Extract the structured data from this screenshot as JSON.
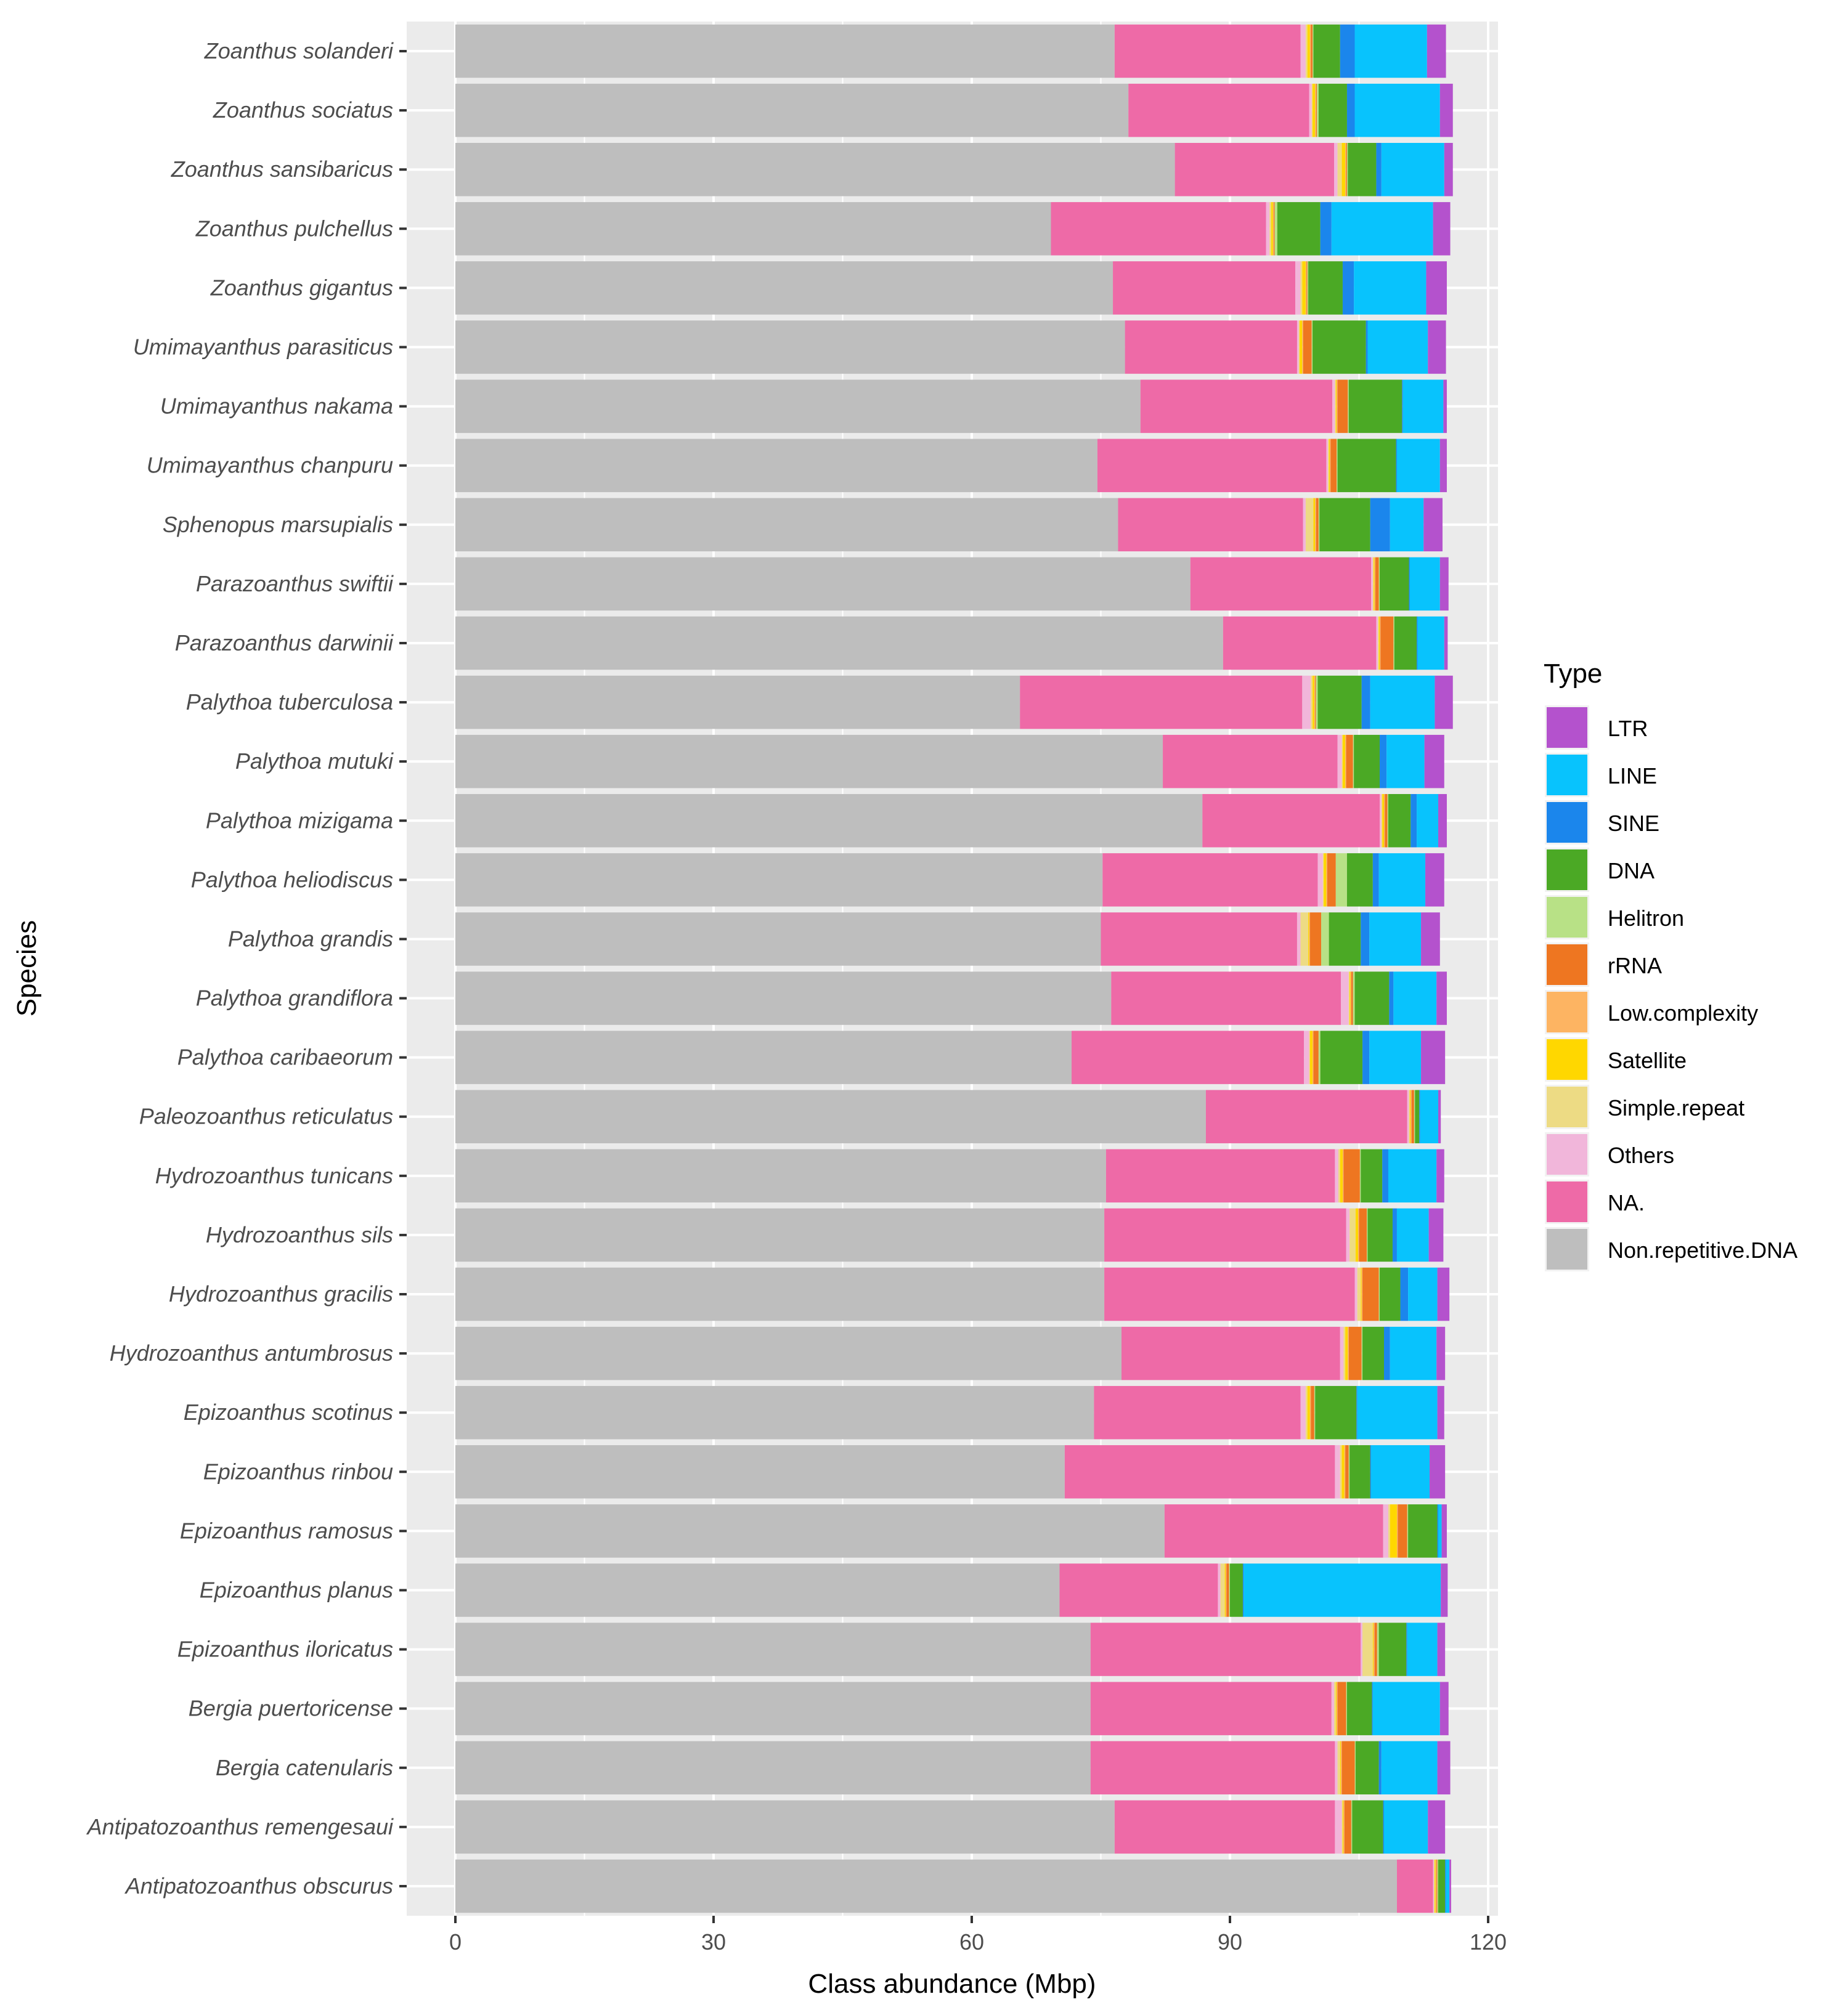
{
  "chart_data": {
    "type": "bar",
    "orientation": "horizontal",
    "stacked": true,
    "title": "",
    "xlabel": "Class abundance (Mbp)",
    "ylabel": "Species",
    "xlim": [
      0,
      120
    ],
    "xticks": [
      0,
      30,
      60,
      90,
      120
    ],
    "xtick_labels": [
      "0",
      "30",
      "60",
      "90",
      "120"
    ],
    "grid": true,
    "legend": {
      "title": "Type",
      "position": "right",
      "entries": [
        "LTR",
        "LINE",
        "SINE",
        "DNA",
        "Helitron",
        "rRNA",
        "Low.complexity",
        "Satellite",
        "Simple.repeat",
        "Others",
        "NA.",
        "Non.repetitive.DNA"
      ]
    },
    "colors": {
      "LTR": "#B452CD",
      "LINE": "#08C3FD",
      "SINE": "#1B86EC",
      "DNA": "#4BA925",
      "Helitron": "#B8E186",
      "rRNA": "#EE7621",
      "Low.complexity": "#FDB462",
      "Satellite": "#FFD700",
      "Simple.repeat": "#EDDB84",
      "Others": "#F1B6DA",
      "NA.": "#EE6AA7",
      "Non.repetitive.DNA": "#BEBEBE"
    },
    "stack_order_left_to_right": [
      "Non.repetitive.DNA",
      "NA.",
      "Others",
      "Simple.repeat",
      "Satellite",
      "Low.complexity",
      "rRNA",
      "Helitron",
      "DNA",
      "SINE",
      "LINE",
      "LTR"
    ],
    "categories": [
      "Zoanthus solanderi",
      "Zoanthus sociatus",
      "Zoanthus sansibaricus",
      "Zoanthus pulchellus",
      "Zoanthus gigantus",
      "Umimayanthus parasiticus",
      "Umimayanthus nakama",
      "Umimayanthus chanpuru",
      "Sphenopus marsupialis",
      "Parazoanthus swiftii",
      "Parazoanthus darwinii",
      "Palythoa tuberculosa",
      "Palythoa mutuki",
      "Palythoa mizigama",
      "Palythoa heliodiscus",
      "Palythoa grandis",
      "Palythoa grandiflora",
      "Palythoa caribaeorum",
      "Paleozoanthus reticulatus",
      "Hydrozoanthus tunicans",
      "Hydrozoanthus sils",
      "Hydrozoanthus gracilis",
      "Hydrozoanthus antumbrosus",
      "Epizoanthus scotinus",
      "Epizoanthus rinbou",
      "Epizoanthus ramosus",
      "Epizoanthus planus",
      "Epizoanthus iloricatus",
      "Bergia puertoricense",
      "Bergia catenularis",
      "Antipatozoanthus remengesaui",
      "Antipatozoanthus obscurus"
    ],
    "series": [
      {
        "name": "Non.repetitive.DNA",
        "values": [
          76.6,
          78.2,
          83.6,
          69.2,
          76.4,
          77.8,
          79.6,
          74.6,
          77.0,
          85.4,
          89.2,
          65.6,
          82.2,
          86.8,
          75.2,
          75.0,
          76.2,
          71.6,
          87.2,
          75.6,
          75.4,
          75.4,
          77.4,
          74.2,
          70.8,
          82.4,
          70.2,
          73.8,
          73.8,
          73.8,
          76.6,
          109.4
        ]
      },
      {
        "name": "NA.",
        "values": [
          21.6,
          21.0,
          18.5,
          25.0,
          21.2,
          20.0,
          22.3,
          26.6,
          21.5,
          21.0,
          17.8,
          32.8,
          20.3,
          20.6,
          25.0,
          22.8,
          26.7,
          27.0,
          23.4,
          26.6,
          28.1,
          29.1,
          25.4,
          24.0,
          31.4,
          25.4,
          18.4,
          31.4,
          28.0,
          28.4,
          25.6,
          4.2
        ]
      },
      {
        "name": "Others",
        "values": [
          0.6,
          0.3,
          0.4,
          0.4,
          0.6,
          0.2,
          0.3,
          0.2,
          0.3,
          0.2,
          0.2,
          1.0,
          0.5,
          0.2,
          0.6,
          0.4,
          0.9,
          0.6,
          0.2,
          0.4,
          0.4,
          0.3,
          0.4,
          0.6,
          0.6,
          0.6,
          0.3,
          0.2,
          0.3,
          0.3,
          0.8,
          0.1
        ]
      },
      {
        "name": "Simple.repeat",
        "values": [
          0.2,
          0.1,
          0.5,
          0.2,
          0.2,
          0.1,
          0.1,
          0.1,
          0.9,
          0.1,
          0.1,
          0.2,
          0.1,
          0.1,
          0.1,
          0.9,
          0.1,
          0.1,
          0.1,
          0.2,
          0.7,
          0.4,
          0.2,
          0.2,
          0.2,
          0.2,
          0.5,
          1.2,
          0.2,
          0.3,
          0.1,
          0.1
        ]
      },
      {
        "name": "Satellite",
        "values": [
          0.3,
          0.3,
          0.4,
          0.2,
          0.4,
          0.3,
          0.1,
          0.1,
          0.2,
          0.1,
          0.1,
          0.2,
          0.3,
          0.2,
          0.3,
          0.1,
          0.1,
          0.3,
          0.1,
          0.3,
          0.3,
          0.1,
          0.3,
          0.3,
          0.3,
          0.8,
          0.1,
          0.1,
          0.1,
          0.1,
          0.1,
          0.1
        ]
      },
      {
        "name": "Low.complexity",
        "values": [
          0.1,
          0.1,
          0.1,
          0.1,
          0.1,
          0.1,
          0.1,
          0.1,
          0.1,
          0.1,
          0.1,
          0.1,
          0.1,
          0.1,
          0.1,
          0.1,
          0.1,
          0.1,
          0.1,
          0.1,
          0.1,
          0.1,
          0.1,
          0.1,
          0.1,
          0.1,
          0.1,
          0.1,
          0.1,
          0.1,
          0.1,
          0.1
        ]
      },
      {
        "name": "rRNA",
        "values": [
          0.2,
          0.1,
          0.1,
          0.1,
          0.1,
          1.0,
          1.2,
          0.7,
          0.3,
          0.4,
          1.5,
          0.1,
          0.8,
          0.3,
          1.0,
          1.3,
          0.2,
          0.6,
          0.3,
          1.9,
          0.9,
          1.9,
          1.5,
          0.4,
          0.4,
          1.1,
          0.3,
          0.3,
          1.0,
          1.5,
          0.8,
          0.1
        ]
      },
      {
        "name": "Helitron",
        "values": [
          0.1,
          0.2,
          0.1,
          0.3,
          0.1,
          0.1,
          0.1,
          0.1,
          0.1,
          0.1,
          0.1,
          0.2,
          0.1,
          0.1,
          1.3,
          0.9,
          0.2,
          0.2,
          0.1,
          0.1,
          0.1,
          0.1,
          0.1,
          0.1,
          0.1,
          0.1,
          0.1,
          0.2,
          0.1,
          0.1,
          0.1,
          0.1
        ]
      },
      {
        "name": "DNA",
        "values": [
          3.1,
          3.3,
          3.3,
          5.0,
          4.0,
          6.2,
          6.2,
          6.8,
          5.9,
          3.4,
          2.6,
          5.1,
          3.0,
          2.6,
          3.0,
          3.7,
          4.0,
          4.9,
          0.5,
          2.5,
          2.9,
          2.4,
          2.5,
          4.8,
          2.4,
          3.4,
          1.5,
          3.2,
          2.9,
          2.7,
          3.6,
          0.8
        ]
      },
      {
        "name": "SINE",
        "values": [
          1.7,
          0.9,
          0.6,
          1.3,
          1.3,
          0.2,
          0.1,
          0.1,
          2.3,
          0.1,
          0.1,
          1.0,
          0.8,
          0.7,
          0.7,
          1.0,
          0.5,
          0.8,
          0.1,
          0.7,
          0.5,
          0.9,
          0.7,
          0.1,
          0.1,
          0.1,
          0.1,
          0.1,
          0.1,
          0.3,
          0.1,
          0.1
        ]
      },
      {
        "name": "LINE",
        "values": [
          8.4,
          9.9,
          7.3,
          11.8,
          8.4,
          7.0,
          4.7,
          5.0,
          3.9,
          3.5,
          3.1,
          7.5,
          4.4,
          2.5,
          5.4,
          6.0,
          5.0,
          6.0,
          2.1,
          5.6,
          3.7,
          3.4,
          5.4,
          9.3,
          6.8,
          0.4,
          22.9,
          3.5,
          7.8,
          6.5,
          5.1,
          0.4
        ]
      },
      {
        "name": "LTR",
        "values": [
          2.2,
          1.5,
          1.0,
          2.0,
          2.4,
          2.1,
          0.4,
          0.8,
          2.2,
          1.0,
          0.4,
          2.1,
          2.3,
          1.0,
          2.2,
          2.2,
          1.2,
          2.8,
          0.3,
          0.9,
          1.7,
          1.4,
          1.0,
          0.8,
          1.8,
          0.6,
          0.8,
          0.9,
          1.0,
          1.5,
          2.0,
          0.2
        ]
      }
    ]
  }
}
